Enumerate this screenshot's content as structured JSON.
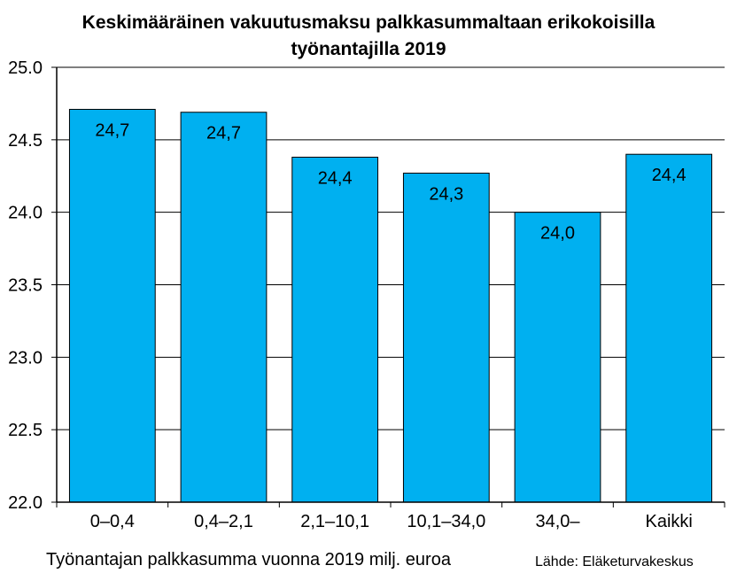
{
  "chart_data": {
    "type": "bar",
    "title_lines": [
      "Keskimääräinen vakuutusmaksu palkkasummaltaan erikokoisilla",
      "työnantajilla 2019"
    ],
    "categories": [
      "0–0,4",
      "0,4–2,1",
      "2,1–10,1",
      "10,1–34,0",
      "34,0–",
      "Kaikki"
    ],
    "values": [
      24.71,
      24.69,
      24.38,
      24.27,
      24.0,
      24.4
    ],
    "data_labels": [
      "24,7",
      "24,7",
      "24,4",
      "24,3",
      "24,0",
      "24,4"
    ],
    "xlabel": "Työnantajan palkkasumma vuonna 2019 milj. euroa",
    "ylabel": "",
    "ylim": [
      22.0,
      25.0
    ],
    "yticks": [
      "22.0",
      "22.5",
      "23.0",
      "23.5",
      "24.0",
      "24.5",
      "25.0"
    ],
    "grid": true,
    "legend": "none",
    "bar_color": "#00B0F0",
    "source": "Lähde: Eläketurvakeskus"
  }
}
